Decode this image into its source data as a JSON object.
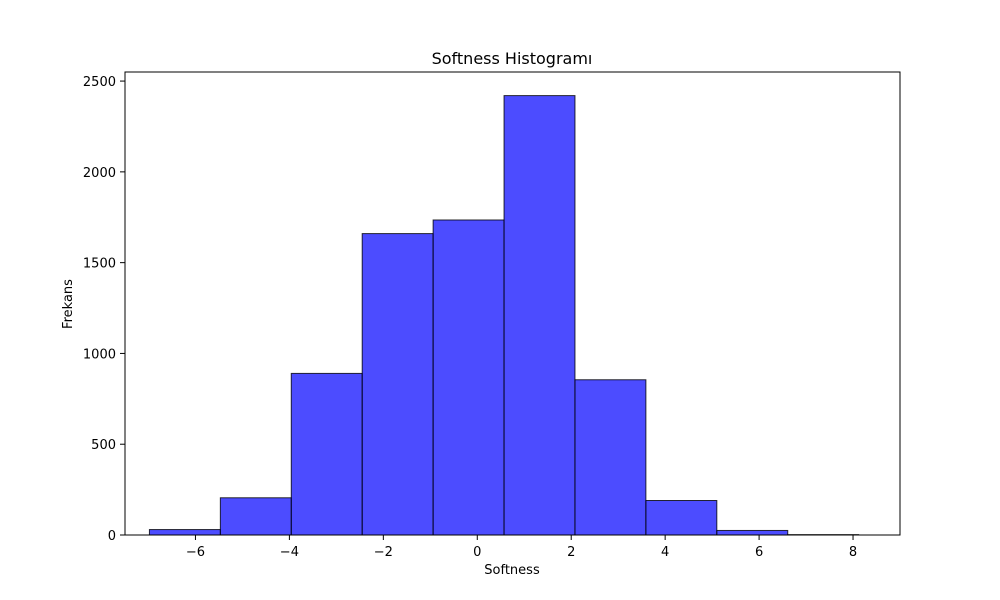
{
  "chart_data": {
    "type": "bar",
    "title": "Softness Histogramı",
    "xlabel": "Softness",
    "ylabel": "Frekans",
    "xlim": [
      -7.5,
      9.0
    ],
    "ylim": [
      0,
      2550
    ],
    "x_ticks": [
      -6,
      -4,
      -2,
      0,
      2,
      4,
      6,
      8
    ],
    "y_ticks": [
      0,
      500,
      1000,
      1500,
      2000,
      2500
    ],
    "bin_edges": [
      -6.98,
      -5.47,
      -3.96,
      -2.45,
      -0.94,
      0.57,
      2.08,
      3.59,
      5.1,
      6.61,
      8.12
    ],
    "values": [
      30,
      205,
      890,
      1660,
      1735,
      2420,
      855,
      190,
      25,
      2
    ],
    "bar_color": "#0000ff",
    "bar_opacity": 0.7,
    "edge_color": "#000000",
    "grid": false,
    "legend": "none"
  }
}
